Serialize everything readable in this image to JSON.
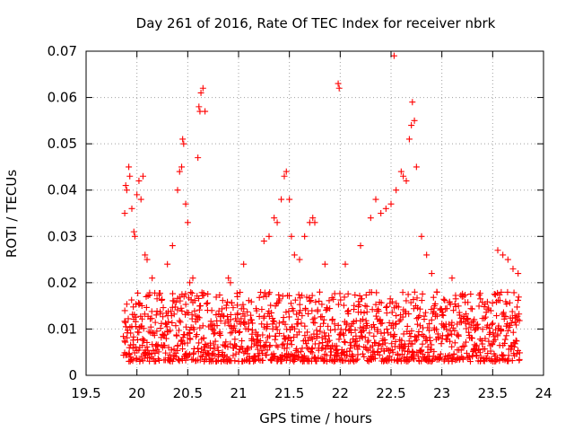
{
  "chart_data": {
    "type": "scatter",
    "title": "Day 261 of 2016, Rate Of TEC Index for receiver nbrk",
    "xlabel": "GPS time / hours",
    "ylabel": "ROTI / TECUs",
    "xlim": [
      19.5,
      24
    ],
    "ylim": [
      0,
      0.07
    ],
    "x_ticks": [
      19.5,
      20,
      20.5,
      21,
      21.5,
      22,
      22.5,
      23,
      23.5,
      24
    ],
    "x_tick_labels": [
      "19.5",
      "20",
      "20.5",
      "21",
      "21.5",
      "22",
      "22.5",
      "23",
      "23.5",
      "24"
    ],
    "y_ticks": [
      0,
      0.01,
      0.02,
      0.03,
      0.04,
      0.05,
      0.06,
      0.07
    ],
    "y_tick_labels": [
      "0",
      "0.01",
      "0.02",
      "0.03",
      "0.04",
      "0.05",
      "0.06",
      "0.07"
    ],
    "grid": true,
    "marker": "+",
    "series": [
      {
        "name": "ROTI",
        "color": "#ff0000",
        "points": [
          [
            19.88,
            0.035
          ],
          [
            19.89,
            0.041
          ],
          [
            19.9,
            0.04
          ],
          [
            19.92,
            0.045
          ],
          [
            19.93,
            0.043
          ],
          [
            19.95,
            0.036
          ],
          [
            19.97,
            0.031
          ],
          [
            19.98,
            0.03
          ],
          [
            20.0,
            0.039
          ],
          [
            20.02,
            0.042
          ],
          [
            20.04,
            0.038
          ],
          [
            20.06,
            0.043
          ],
          [
            20.08,
            0.026
          ],
          [
            20.1,
            0.025
          ],
          [
            20.15,
            0.021
          ],
          [
            20.3,
            0.024
          ],
          [
            20.35,
            0.028
          ],
          [
            20.4,
            0.04
          ],
          [
            20.42,
            0.044
          ],
          [
            20.44,
            0.045
          ],
          [
            20.45,
            0.051
          ],
          [
            20.46,
            0.05
          ],
          [
            20.48,
            0.037
          ],
          [
            20.5,
            0.033
          ],
          [
            20.52,
            0.02
          ],
          [
            20.55,
            0.021
          ],
          [
            20.6,
            0.047
          ],
          [
            20.61,
            0.058
          ],
          [
            20.62,
            0.057
          ],
          [
            20.63,
            0.061
          ],
          [
            20.65,
            0.062
          ],
          [
            20.67,
            0.057
          ],
          [
            20.9,
            0.021
          ],
          [
            20.92,
            0.02
          ],
          [
            21.05,
            0.024
          ],
          [
            21.25,
            0.029
          ],
          [
            21.3,
            0.03
          ],
          [
            21.35,
            0.034
          ],
          [
            21.38,
            0.033
          ],
          [
            21.42,
            0.038
          ],
          [
            21.45,
            0.043
          ],
          [
            21.47,
            0.044
          ],
          [
            21.5,
            0.038
          ],
          [
            21.52,
            0.03
          ],
          [
            21.55,
            0.026
          ],
          [
            21.6,
            0.025
          ],
          [
            21.65,
            0.03
          ],
          [
            21.7,
            0.033
          ],
          [
            21.73,
            0.034
          ],
          [
            21.75,
            0.033
          ],
          [
            21.85,
            0.024
          ],
          [
            21.98,
            0.063
          ],
          [
            21.99,
            0.062
          ],
          [
            22.05,
            0.024
          ],
          [
            22.2,
            0.028
          ],
          [
            22.3,
            0.034
          ],
          [
            22.35,
            0.038
          ],
          [
            22.4,
            0.035
          ],
          [
            22.45,
            0.036
          ],
          [
            22.5,
            0.037
          ],
          [
            22.53,
            0.069
          ],
          [
            22.55,
            0.04
          ],
          [
            22.6,
            0.044
          ],
          [
            22.62,
            0.043
          ],
          [
            22.65,
            0.042
          ],
          [
            22.68,
            0.051
          ],
          [
            22.7,
            0.054
          ],
          [
            22.71,
            0.059
          ],
          [
            22.73,
            0.055
          ],
          [
            22.75,
            0.045
          ],
          [
            22.8,
            0.03
          ],
          [
            22.85,
            0.026
          ],
          [
            22.9,
            0.022
          ],
          [
            22.95,
            0.018
          ],
          [
            23.1,
            0.021
          ],
          [
            23.2,
            0.017
          ],
          [
            23.55,
            0.027
          ],
          [
            23.6,
            0.026
          ],
          [
            23.65,
            0.025
          ],
          [
            23.7,
            0.023
          ],
          [
            23.75,
            0.022
          ]
        ],
        "dense_band": {
          "x_range": [
            19.87,
            23.77
          ],
          "y_range": [
            0.003,
            0.018
          ]
        }
      }
    ]
  }
}
